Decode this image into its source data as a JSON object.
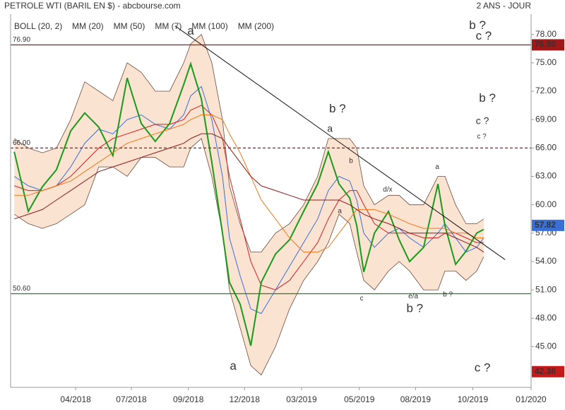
{
  "chart_data": {
    "type": "line",
    "title": "PETROLE WTI (BARIL EN $) - abcbourse.com",
    "subtitle": "2 ANS - JOUR",
    "xlim": [
      2018.0,
      2020.0
    ],
    "xticks": [
      {
        "value": 2018.25,
        "label": "04/2018"
      },
      {
        "value": 2018.464,
        "label": "07/2018"
      },
      {
        "value": 2018.683,
        "label": "09/2018"
      },
      {
        "value": 2018.899,
        "label": "12/2018"
      },
      {
        "value": 2019.118,
        "label": "03/2019"
      },
      {
        "value": 2019.34,
        "label": "05/2019"
      },
      {
        "value": 2019.556,
        "label": "08/2019"
      },
      {
        "value": 2019.776,
        "label": "10/2019"
      },
      {
        "value": 2020.0,
        "label": "01/2020"
      }
    ],
    "ylim": [
      40.7,
      79.4
    ],
    "yticks": [
      {
        "value": 45,
        "label": "45.00"
      },
      {
        "value": 48,
        "label": "48.00"
      },
      {
        "value": 51,
        "label": "51.00"
      },
      {
        "value": 54,
        "label": "54.00"
      },
      {
        "value": 57,
        "label": "57.00"
      },
      {
        "value": 60,
        "label": "60.00"
      },
      {
        "value": 63,
        "label": "63.00"
      },
      {
        "value": 66,
        "label": "66.00"
      },
      {
        "value": 69,
        "label": "69.00"
      },
      {
        "value": 72,
        "label": "72.00"
      },
      {
        "value": 75,
        "label": "75.00"
      },
      {
        "value": 78,
        "label": "78.00"
      }
    ],
    "x": [
      2018.014,
      2018.068,
      2018.122,
      2018.176,
      2018.231,
      2018.285,
      2018.339,
      2018.393,
      2018.448,
      2018.502,
      2018.556,
      2018.611,
      2018.665,
      2018.692,
      2018.733,
      2018.773,
      2018.814,
      2018.841,
      2018.882,
      2018.923,
      2018.963,
      2019.018,
      2019.072,
      2019.126,
      2019.18,
      2019.221,
      2019.262,
      2019.303,
      2019.33,
      2019.357,
      2019.398,
      2019.452,
      2019.493,
      2019.533,
      2019.587,
      2019.642,
      2019.669,
      2019.71,
      2019.75,
      2019.791,
      2019.818
    ],
    "bollinger": {
      "name": "BOLL (20, 2)",
      "color": "#6b4a3a",
      "fill": "#fbe3d2",
      "upper": [
        67,
        66,
        65.5,
        66,
        69,
        73,
        72,
        71,
        75,
        74,
        72,
        72,
        75,
        77,
        78,
        75,
        69,
        62,
        58,
        55,
        55,
        57,
        58,
        60,
        63,
        67,
        67,
        67,
        66,
        62,
        60,
        61,
        61,
        60,
        60,
        63,
        63,
        60,
        58,
        58,
        58.5
      ],
      "lower": [
        59,
        58,
        57.5,
        58,
        59,
        60,
        64,
        64,
        63,
        65,
        65,
        64,
        64,
        66,
        67,
        63,
        57,
        51,
        47,
        43,
        42,
        45,
        49,
        52,
        54,
        56,
        59,
        58,
        55,
        52,
        51,
        53,
        54,
        53,
        51,
        51,
        53,
        53,
        52,
        53,
        54.5
      ]
    },
    "series": [
      {
        "name": "MM (20)",
        "color": "#3a6fd8",
        "values": [
          63,
          62,
          61.5,
          62,
          64,
          66.5,
          68,
          67.5,
          69,
          69.5,
          68.5,
          68,
          69.5,
          71.5,
          72.5,
          69,
          63,
          56.5,
          52.5,
          49,
          48.5,
          51,
          53.5,
          56,
          58.5,
          61.5,
          63,
          62.5,
          60.5,
          57,
          55.5,
          57,
          57.5,
          56.5,
          55.5,
          57,
          58,
          56.5,
          55,
          55.5,
          56.5
        ]
      },
      {
        "name": "MM (50)",
        "color": "#d02020",
        "values": [
          62,
          61.5,
          61.5,
          62,
          63,
          64.5,
          66,
          67,
          67.5,
          68,
          68.5,
          68.5,
          69,
          70,
          70.5,
          69.5,
          67,
          63,
          58.5,
          54,
          51.5,
          51,
          52,
          54,
          56,
          58.5,
          60.5,
          61.5,
          61.5,
          60,
          58,
          57,
          57,
          57,
          56.5,
          56.5,
          57,
          57,
          56.5,
          56,
          56
        ]
      },
      {
        "name": "MM (7)",
        "color": "#1a9a1a",
        "values": [
          65.6,
          59.3,
          61.9,
          63.7,
          67.8,
          69.7,
          68.2,
          65.2,
          73.4,
          68.6,
          66.7,
          68.6,
          72.7,
          74.9,
          71.2,
          64.5,
          57.0,
          51.8,
          49.5,
          45.1,
          51.8,
          54.8,
          56.3,
          59.3,
          62.2,
          65.6,
          62.2,
          60.7,
          57.8,
          52.9,
          57.0,
          59.3,
          56.3,
          54.0,
          55.5,
          62.2,
          57.8,
          53.7,
          55.1,
          57.0,
          57.4
        ]
      },
      {
        "name": "MM (100)",
        "color": "#f07818",
        "values": [
          61,
          61,
          61.5,
          62,
          62.5,
          63.5,
          64.5,
          65.5,
          66.5,
          67,
          67.5,
          68,
          68.5,
          69,
          69.5,
          69.5,
          69,
          67.5,
          65.5,
          63,
          60.5,
          58.5,
          56.5,
          55,
          55,
          55.5,
          57,
          58.5,
          59.5,
          59.5,
          59.5,
          59,
          58.5,
          58,
          57.5,
          57.5,
          57.5,
          57,
          57,
          56.5,
          56.5
        ]
      },
      {
        "name": "MM (200)",
        "color": "#8b1a1a",
        "values": [
          58.5,
          59,
          59.5,
          60.5,
          61.5,
          62.5,
          63.5,
          64,
          64.5,
          65,
          65.5,
          66,
          66.5,
          67,
          67.5,
          67.5,
          67,
          66,
          64.5,
          63,
          62,
          61.5,
          61,
          60.5,
          60.5,
          60.5,
          60.5,
          60,
          59.5,
          59,
          58.5,
          58,
          57.5,
          57,
          57,
          57,
          57,
          56.5,
          56,
          55.5,
          55
        ]
      }
    ],
    "trendline": {
      "x": [
        2018.632,
        2019.9
      ],
      "y": [
        78.9,
        54.2
      ],
      "color": "#111111"
    },
    "levels": [
      {
        "value": 76.9,
        "label": "76.90",
        "color": "#a01818",
        "dash": false,
        "tag": true
      },
      {
        "value": 66,
        "label": "66.00",
        "color": "#a01818",
        "dash": true,
        "tag": false
      },
      {
        "value": 50.6,
        "label": "50.60",
        "color": "#138a13",
        "dash": false,
        "tag": false
      }
    ],
    "price_tags": [
      {
        "value": 57.82,
        "label": "57.82",
        "color": "#3a6fd8"
      },
      {
        "value": 42.36,
        "label": "42.36",
        "color": "#c41a1a"
      }
    ],
    "annotations": [
      {
        "text": "a",
        "x": 2018.692,
        "y": 78.3,
        "color": "#1a1a7a",
        "size": "large"
      },
      {
        "text": "b ?",
        "x": 2019.794,
        "y": 78.9,
        "color": "#a01818",
        "size": "large"
      },
      {
        "text": "c ?",
        "x": 2019.818,
        "y": 77.8,
        "color": "#1a1a7a",
        "size": "large"
      },
      {
        "text": "b ?",
        "x": 2019.256,
        "y": 70.1,
        "color": "#a01818",
        "size": "large"
      },
      {
        "text": "a",
        "x": 2019.227,
        "y": 68.0,
        "color": "#1a1a7a",
        "size": "medium"
      },
      {
        "text": "b ?",
        "x": 2019.832,
        "y": 71.2,
        "color": "#a01818",
        "size": "large"
      },
      {
        "text": "c ?",
        "x": 2019.813,
        "y": 68.8,
        "color": "#1a1a7a",
        "size": "medium"
      },
      {
        "text": "c ?",
        "x": 2019.81,
        "y": 67.2,
        "color": "#1a1a7a",
        "size": "small"
      },
      {
        "text": "b",
        "x": 2019.308,
        "y": 64.6,
        "color": "#a01818",
        "size": "small"
      },
      {
        "text": "a",
        "x": 2019.265,
        "y": 59.3,
        "color": "#a01818",
        "size": "small"
      },
      {
        "text": "d/x",
        "x": 2019.449,
        "y": 61.6,
        "color": "#a01818",
        "size": "small"
      },
      {
        "text": "a",
        "x": 2019.639,
        "y": 64.0,
        "color": "#1a1a7a",
        "size": "small"
      },
      {
        "text": "c",
        "x": 2019.349,
        "y": 50.1,
        "color": "#a01818",
        "size": "small"
      },
      {
        "text": "e/a",
        "x": 2019.547,
        "y": 50.3,
        "color": "#a01818",
        "size": "small"
      },
      {
        "text": "b ?",
        "x": 2019.553,
        "y": 49.0,
        "color": "#1a1a7a",
        "size": "large"
      },
      {
        "text": "b ?",
        "x": 2019.68,
        "y": 50.5,
        "color": "#1a1a7a",
        "size": "small"
      },
      {
        "text": "a",
        "x": 2018.855,
        "y": 42.9,
        "color": "#a01818",
        "size": "large"
      },
      {
        "text": "c ?",
        "x": 2019.813,
        "y": 42.7,
        "color": "#a01818",
        "size": "large"
      }
    ]
  }
}
